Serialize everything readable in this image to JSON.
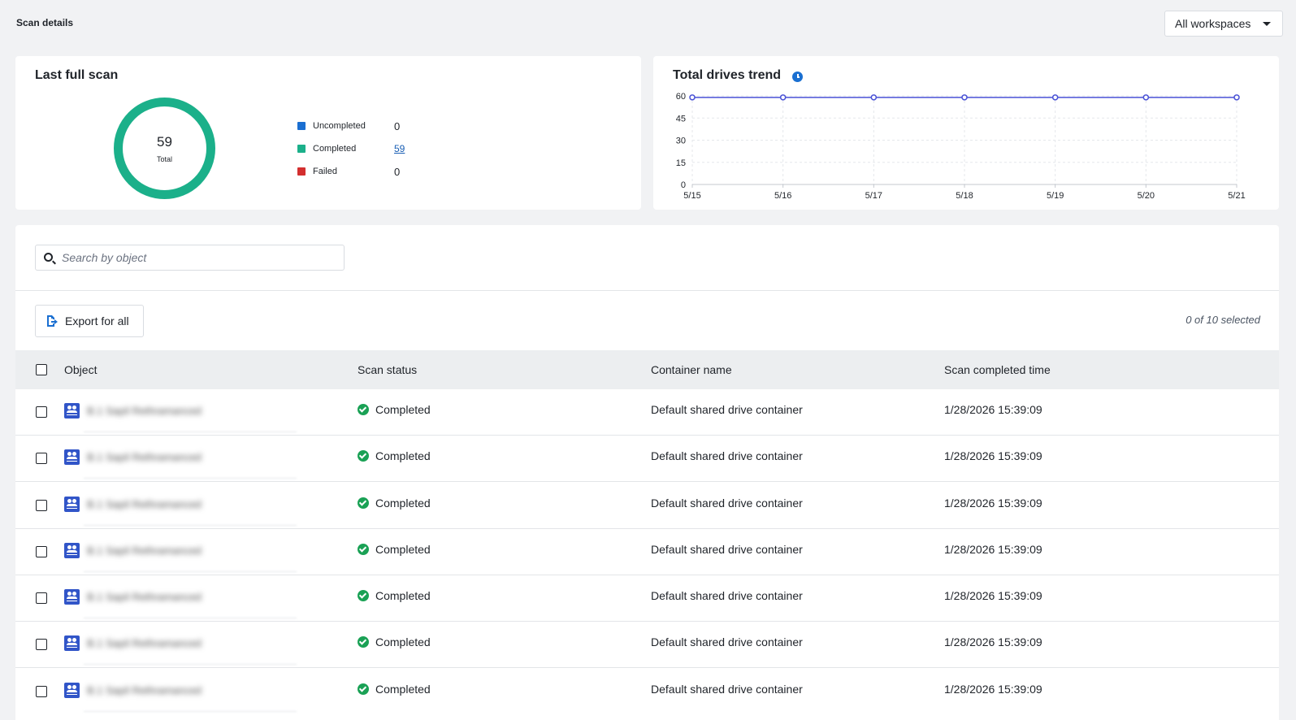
{
  "header": {
    "title": "Scan details",
    "workspace_select": "All workspaces"
  },
  "last_full_scan": {
    "title": "Last full scan",
    "total_value": "59",
    "total_label": "Total",
    "legend": [
      {
        "label": "Uncompleted",
        "value": "0",
        "color": "#1a6fd1"
      },
      {
        "label": "Completed",
        "value": "59",
        "color": "#1bb08a"
      },
      {
        "label": "Failed",
        "value": "0",
        "color": "#d32f2f"
      }
    ],
    "donut_color": "#1bb08a"
  },
  "trend": {
    "title": "Total drives trend",
    "icon": "clock-icon"
  },
  "chart_data": {
    "type": "line",
    "title": "Total drives trend",
    "x": [
      "5/15",
      "5/16",
      "5/17",
      "5/18",
      "5/19",
      "5/20",
      "5/21"
    ],
    "series": [
      {
        "values": [
          59,
          59,
          59,
          59,
          59,
          59,
          59
        ],
        "color": "#4a52d6"
      }
    ],
    "yticks": [
      "0",
      "15",
      "30",
      "45",
      "60"
    ],
    "ylim": [
      0,
      60
    ],
    "grid": true
  },
  "table": {
    "search_placeholder": "Search by object",
    "export_label": "Export for all",
    "selection_count": "0 of 10 selected",
    "columns": [
      "Object",
      "Scan status",
      "Container name",
      "Scan completed time"
    ],
    "rows": [
      {
        "object": "B.1 Sapil Rethramanced",
        "status": "Completed",
        "container": "Default shared drive container",
        "time": "1/28/2026 15:39:09"
      },
      {
        "object": "B.1 Sapil Rethramanced",
        "status": "Completed",
        "container": "Default shared drive container",
        "time": "1/28/2026 15:39:09"
      },
      {
        "object": "B.1 Sapil Rethramanced",
        "status": "Completed",
        "container": "Default shared drive container",
        "time": "1/28/2026 15:39:09"
      },
      {
        "object": "B.1 Sapil Rethramanced",
        "status": "Completed",
        "container": "Default shared drive container",
        "time": "1/28/2026 15:39:09"
      },
      {
        "object": "B.1 Sapil Rethramanced",
        "status": "Completed",
        "container": "Default shared drive container",
        "time": "1/28/2026 15:39:09"
      },
      {
        "object": "B.1 Sapil Rethramanced",
        "status": "Completed",
        "container": "Default shared drive container",
        "time": "1/28/2026 15:39:09"
      },
      {
        "object": "B.1 Sapil Rethramanced",
        "status": "Completed",
        "container": "Default shared drive container",
        "time": "1/28/2026 15:39:09"
      }
    ]
  }
}
